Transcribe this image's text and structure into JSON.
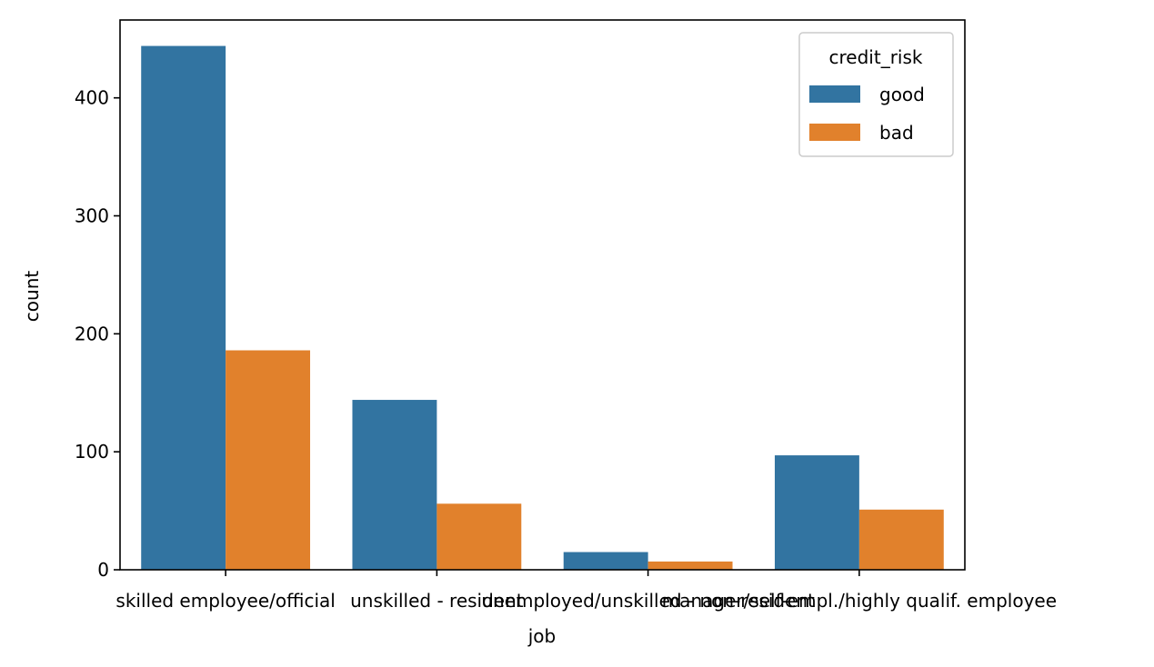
{
  "chart_data": {
    "type": "bar",
    "categories": [
      "skilled employee/official",
      "unskilled - resident",
      "unemployed/unskilled - non-resident",
      "manager/self-empl./highly qualif. employee"
    ],
    "series": [
      {
        "name": "good",
        "values": [
          444,
          144,
          15,
          97
        ],
        "color": "#3274a1"
      },
      {
        "name": "bad",
        "values": [
          186,
          56,
          7,
          51
        ],
        "color": "#e1812c"
      }
    ],
    "xlabel": "job",
    "ylabel": "count",
    "ylim": [
      0,
      466
    ],
    "yticks": [
      0,
      100,
      200,
      300,
      400
    ],
    "legend": {
      "title": "credit_risk",
      "placement": "top-right"
    },
    "grid": false
  }
}
